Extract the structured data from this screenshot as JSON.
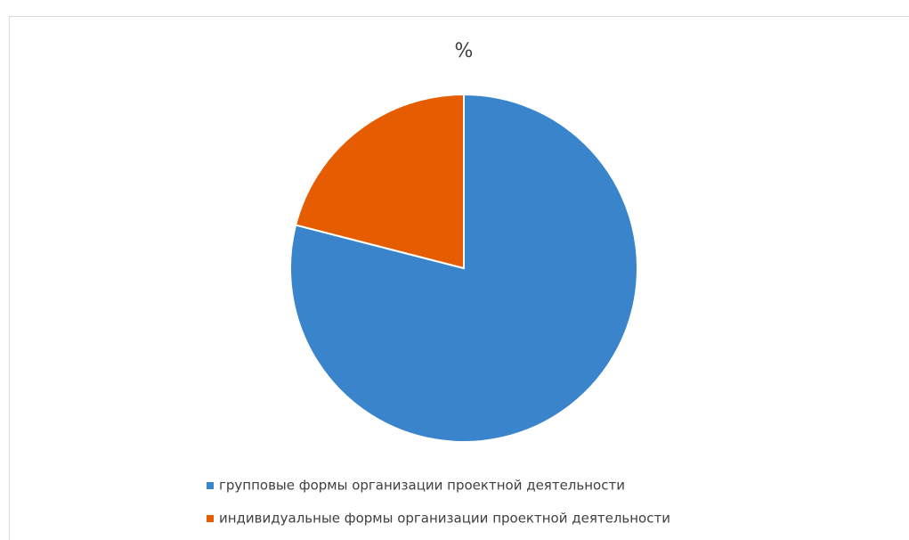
{
  "chart_data": {
    "type": "pie",
    "title": "%",
    "categories": [
      "групповые формы организации проектной деятельности",
      "индивидуальные формы организации проектной деятельности"
    ],
    "values": [
      79,
      21
    ],
    "colors": [
      "#3a84cc",
      "#e65c00"
    ],
    "legend": "bottom"
  }
}
